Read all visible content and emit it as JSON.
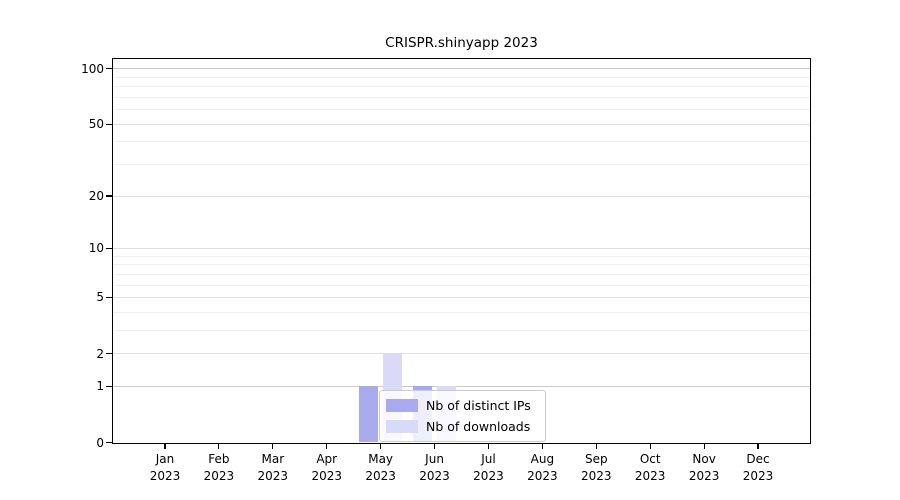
{
  "title": "CRISPR.shinyapp 2023",
  "chart_data": {
    "type": "bar",
    "title": "CRISPR.shinyapp 2023",
    "categories": [
      "Jan",
      "Feb",
      "Mar",
      "Apr",
      "May",
      "Jun",
      "Jul",
      "Aug",
      "Sep",
      "Oct",
      "Nov",
      "Dec"
    ],
    "year_label": "2023",
    "series": [
      {
        "name": "Nb of distinct IPs",
        "color": "#a9a9ee",
        "values": [
          0,
          0,
          0,
          0,
          1,
          1,
          0,
          0,
          0,
          0,
          0,
          0
        ]
      },
      {
        "name": "Nb of downloads",
        "color": "#d9d9f8",
        "values": [
          0,
          0,
          0,
          0,
          2,
          1,
          0,
          0,
          0,
          0,
          0,
          0
        ]
      }
    ],
    "xlabel": "",
    "ylabel": "",
    "scale": "log1p",
    "ylim": [
      0,
      115
    ],
    "y_ticks": [
      0,
      1,
      2,
      5,
      10,
      20,
      50,
      100
    ],
    "y_minor_gridlines": [
      3,
      4,
      6,
      7,
      8,
      9,
      30,
      40,
      60,
      70,
      80,
      90
    ],
    "y_emphasized_gridlines": [
      1,
      100
    ],
    "grid": true,
    "legend_position": "inside-lower-center",
    "colors": {
      "axis": "#000000",
      "grid_emphasized": "#c9c9c9",
      "grid_major": "#e0e0e0",
      "grid_minor": "#eeeeee",
      "legend_border": "#cccccc"
    }
  }
}
